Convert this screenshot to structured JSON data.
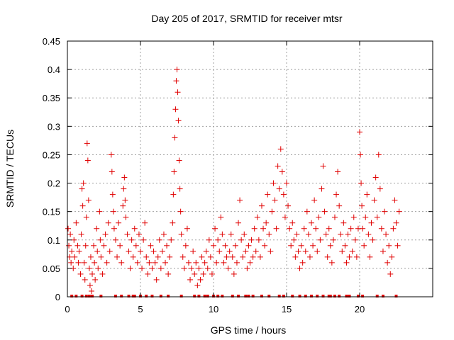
{
  "chart_data": {
    "type": "scatter",
    "title": "Day 205 of 2017, SRMTID for receiver mtsr",
    "xlabel": "GPS time / hours",
    "ylabel": "SRMTID / TECUs",
    "xlim": [
      0,
      25
    ],
    "ylim": [
      0,
      0.45
    ],
    "xticks": [
      0,
      5,
      10,
      15,
      20
    ],
    "xtick_labels": [
      "0",
      "5",
      "10",
      "15",
      "20"
    ],
    "yticks": [
      0,
      0.05,
      0.1,
      0.15,
      0.2,
      0.25,
      0.3,
      0.35,
      0.4,
      0.45
    ],
    "ytick_labels": [
      "0",
      "0.05",
      "0.1",
      "0.15",
      "0.2",
      "0.25",
      "0.3",
      "0.35",
      "0.4",
      "0.45"
    ],
    "grid": true,
    "marker": "+",
    "color": "#e00000",
    "series": [
      {
        "name": "SRMTID",
        "points": [
          [
            0.05,
            0.12
          ],
          [
            0.1,
            0.09
          ],
          [
            0.15,
            0.07
          ],
          [
            0.2,
            0.11
          ],
          [
            0.25,
            0.06
          ],
          [
            0.3,
            0.08
          ],
          [
            0.4,
            0.05
          ],
          [
            0.45,
            0.1
          ],
          [
            0.5,
            0.07
          ],
          [
            0.6,
            0.13
          ],
          [
            0.7,
            0.09
          ],
          [
            0.75,
            0.06
          ],
          [
            0.8,
            0.08
          ],
          [
            0.9,
            0.04
          ],
          [
            0.95,
            0.11
          ],
          [
            1.0,
            0.19
          ],
          [
            1.05,
            0.16
          ],
          [
            1.1,
            0.2
          ],
          [
            1.15,
            0.06
          ],
          [
            1.2,
            0.03
          ],
          [
            1.25,
            0.09
          ],
          [
            1.3,
            0.14
          ],
          [
            1.35,
            0.27
          ],
          [
            1.4,
            0.24
          ],
          [
            1.45,
            0.17
          ],
          [
            1.5,
            0.05
          ],
          [
            1.55,
            0.02
          ],
          [
            1.6,
            0.07
          ],
          [
            1.65,
            0.01
          ],
          [
            1.7,
            0.04
          ],
          [
            1.8,
            0.09
          ],
          [
            1.85,
            0.06
          ],
          [
            1.9,
            0.03
          ],
          [
            2.0,
            0.12
          ],
          [
            2.05,
            0.08
          ],
          [
            2.1,
            0.05
          ],
          [
            2.2,
            0.15
          ],
          [
            2.25,
            0.1
          ],
          [
            2.3,
            0.07
          ],
          [
            2.4,
            0.04
          ],
          [
            2.5,
            0.09
          ],
          [
            2.6,
            0.11
          ],
          [
            2.7,
            0.06
          ],
          [
            2.8,
            0.13
          ],
          [
            2.9,
            0.08
          ],
          [
            3.0,
            0.25
          ],
          [
            3.05,
            0.22
          ],
          [
            3.1,
            0.18
          ],
          [
            3.15,
            0.15
          ],
          [
            3.2,
            0.12
          ],
          [
            3.3,
            0.1
          ],
          [
            3.4,
            0.07
          ],
          [
            3.5,
            0.13
          ],
          [
            3.6,
            0.09
          ],
          [
            3.7,
            0.06
          ],
          [
            3.8,
            0.16
          ],
          [
            3.85,
            0.19
          ],
          [
            3.9,
            0.21
          ],
          [
            3.95,
            0.17
          ],
          [
            4.0,
            0.14
          ],
          [
            4.1,
            0.11
          ],
          [
            4.2,
            0.08
          ],
          [
            4.3,
            0.05
          ],
          [
            4.4,
            0.1
          ],
          [
            4.5,
            0.07
          ],
          [
            4.6,
            0.12
          ],
          [
            4.7,
            0.09
          ],
          [
            4.8,
            0.06
          ],
          [
            4.9,
            0.11
          ],
          [
            5.0,
            0.08
          ],
          [
            5.1,
            0.05
          ],
          [
            5.2,
            0.1
          ],
          [
            5.3,
            0.13
          ],
          [
            5.4,
            0.07
          ],
          [
            5.5,
            0.04
          ],
          [
            5.6,
            0.06
          ],
          [
            5.7,
            0.09
          ],
          [
            5.8,
            0.05
          ],
          [
            5.9,
            0.08
          ],
          [
            6.0,
            0.06
          ],
          [
            6.1,
            0.03
          ],
          [
            6.2,
            0.07
          ],
          [
            6.3,
            0.1
          ],
          [
            6.4,
            0.05
          ],
          [
            6.5,
            0.08
          ],
          [
            6.6,
            0.11
          ],
          [
            6.7,
            0.06
          ],
          [
            6.8,
            0.09
          ],
          [
            6.9,
            0.04
          ],
          [
            7.0,
            0.07
          ],
          [
            7.1,
            0.1
          ],
          [
            7.2,
            0.13
          ],
          [
            7.25,
            0.18
          ],
          [
            7.3,
            0.22
          ],
          [
            7.35,
            0.28
          ],
          [
            7.4,
            0.33
          ],
          [
            7.45,
            0.38
          ],
          [
            7.5,
            0.4
          ],
          [
            7.55,
            0.36
          ],
          [
            7.6,
            0.31
          ],
          [
            7.65,
            0.24
          ],
          [
            7.7,
            0.19
          ],
          [
            7.75,
            0.15
          ],
          [
            7.8,
            0.11
          ],
          [
            7.9,
            0.07
          ],
          [
            8.0,
            0.05
          ],
          [
            8.1,
            0.09
          ],
          [
            8.2,
            0.12
          ],
          [
            8.3,
            0.06
          ],
          [
            8.4,
            0.03
          ],
          [
            8.5,
            0.05
          ],
          [
            8.6,
            0.08
          ],
          [
            8.7,
            0.04
          ],
          [
            8.8,
            0.06
          ],
          [
            8.9,
            0.02
          ],
          [
            9.0,
            0.05
          ],
          [
            9.1,
            0.03
          ],
          [
            9.2,
            0.07
          ],
          [
            9.3,
            0.04
          ],
          [
            9.4,
            0.06
          ],
          [
            9.5,
            0.08
          ],
          [
            9.6,
            0.05
          ],
          [
            9.7,
            0.1
          ],
          [
            9.8,
            0.07
          ],
          [
            9.9,
            0.04
          ],
          [
            10.0,
            0.09
          ],
          [
            10.1,
            0.12
          ],
          [
            10.2,
            0.06
          ],
          [
            10.3,
            0.1
          ],
          [
            10.4,
            0.08
          ],
          [
            10.5,
            0.14
          ],
          [
            10.6,
            0.11
          ],
          [
            10.7,
            0.06
          ],
          [
            10.8,
            0.09
          ],
          [
            10.9,
            0.07
          ],
          [
            11.0,
            0.05
          ],
          [
            11.1,
            0.08
          ],
          [
            11.2,
            0.11
          ],
          [
            11.3,
            0.07
          ],
          [
            11.4,
            0.04
          ],
          [
            11.5,
            0.09
          ],
          [
            11.6,
            0.06
          ],
          [
            11.7,
            0.13
          ],
          [
            11.8,
            0.17
          ],
          [
            11.9,
            0.1
          ],
          [
            12.0,
            0.07
          ],
          [
            12.1,
            0.11
          ],
          [
            12.2,
            0.08
          ],
          [
            12.3,
            0.05
          ],
          [
            12.4,
            0.09
          ],
          [
            12.5,
            0.06
          ],
          [
            12.6,
            0.1
          ],
          [
            12.7,
            0.07
          ],
          [
            12.8,
            0.12
          ],
          [
            12.9,
            0.08
          ],
          [
            13.0,
            0.14
          ],
          [
            13.1,
            0.1
          ],
          [
            13.2,
            0.07
          ],
          [
            13.3,
            0.16
          ],
          [
            13.4,
            0.12
          ],
          [
            13.5,
            0.09
          ],
          [
            13.6,
            0.13
          ],
          [
            13.7,
            0.18
          ],
          [
            13.8,
            0.11
          ],
          [
            13.9,
            0.08
          ],
          [
            14.0,
            0.15
          ],
          [
            14.1,
            0.2
          ],
          [
            14.2,
            0.17
          ],
          [
            14.3,
            0.12
          ],
          [
            14.4,
            0.23
          ],
          [
            14.5,
            0.19
          ],
          [
            14.6,
            0.26
          ],
          [
            14.7,
            0.22
          ],
          [
            14.8,
            0.18
          ],
          [
            14.9,
            0.14
          ],
          [
            15.0,
            0.2
          ],
          [
            15.1,
            0.16
          ],
          [
            15.2,
            0.12
          ],
          [
            15.3,
            0.09
          ],
          [
            15.4,
            0.13
          ],
          [
            15.5,
            0.1
          ],
          [
            15.6,
            0.07
          ],
          [
            15.7,
            0.11
          ],
          [
            15.8,
            0.08
          ],
          [
            15.9,
            0.05
          ],
          [
            16.0,
            0.09
          ],
          [
            16.1,
            0.06
          ],
          [
            16.2,
            0.12
          ],
          [
            16.3,
            0.08
          ],
          [
            16.4,
            0.15
          ],
          [
            16.5,
            0.11
          ],
          [
            16.6,
            0.07
          ],
          [
            16.7,
            0.13
          ],
          [
            16.8,
            0.09
          ],
          [
            16.9,
            0.17
          ],
          [
            17.0,
            0.12
          ],
          [
            17.1,
            0.08
          ],
          [
            17.2,
            0.14
          ],
          [
            17.3,
            0.1
          ],
          [
            17.4,
            0.19
          ],
          [
            17.5,
            0.23
          ],
          [
            17.6,
            0.15
          ],
          [
            17.7,
            0.11
          ],
          [
            17.8,
            0.07
          ],
          [
            17.9,
            0.12
          ],
          [
            18.0,
            0.09
          ],
          [
            18.1,
            0.06
          ],
          [
            18.2,
            0.1
          ],
          [
            18.3,
            0.14
          ],
          [
            18.4,
            0.18
          ],
          [
            18.5,
            0.22
          ],
          [
            18.6,
            0.16
          ],
          [
            18.7,
            0.11
          ],
          [
            18.8,
            0.08
          ],
          [
            18.9,
            0.13
          ],
          [
            19.0,
            0.09
          ],
          [
            19.1,
            0.06
          ],
          [
            19.2,
            0.11
          ],
          [
            19.3,
            0.07
          ],
          [
            19.4,
            0.12
          ],
          [
            19.5,
            0.08
          ],
          [
            19.6,
            0.14
          ],
          [
            19.7,
            0.1
          ],
          [
            19.8,
            0.07
          ],
          [
            19.9,
            0.12
          ],
          [
            20.0,
            0.29
          ],
          [
            20.05,
            0.25
          ],
          [
            20.1,
            0.2
          ],
          [
            20.15,
            0.16
          ],
          [
            20.2,
            0.12
          ],
          [
            20.3,
            0.09
          ],
          [
            20.4,
            0.14
          ],
          [
            20.5,
            0.18
          ],
          [
            20.6,
            0.11
          ],
          [
            20.7,
            0.07
          ],
          [
            20.8,
            0.13
          ],
          [
            20.9,
            0.1
          ],
          [
            21.0,
            0.17
          ],
          [
            21.1,
            0.21
          ],
          [
            21.2,
            0.14
          ],
          [
            21.3,
            0.25
          ],
          [
            21.4,
            0.19
          ],
          [
            21.5,
            0.12
          ],
          [
            21.6,
            0.08
          ],
          [
            21.7,
            0.15
          ],
          [
            21.8,
            0.11
          ],
          [
            21.9,
            0.06
          ],
          [
            22.0,
            0.09
          ],
          [
            22.1,
            0.04
          ],
          [
            22.2,
            0.07
          ],
          [
            22.3,
            0.12
          ],
          [
            22.4,
            0.17
          ],
          [
            22.5,
            0.13
          ],
          [
            22.6,
            0.09
          ],
          [
            22.7,
            0.15
          ]
        ],
        "zero_points": [
          0.3,
          0.6,
          1.0,
          1.3,
          1.5,
          1.7,
          2.3,
          3.3,
          3.7,
          4.2,
          4.5,
          4.6,
          5.0,
          5.4,
          5.8,
          6.4,
          6.9,
          7.8,
          8.7,
          9.0,
          9.4,
          9.6,
          10.0,
          10.3,
          10.6,
          11.3,
          11.7,
          12.2,
          12.4,
          12.7,
          13.3,
          13.8,
          14.5,
          14.8,
          15.4,
          15.9,
          16.3,
          16.7,
          17.1,
          17.5,
          17.9,
          18.0,
          18.3,
          18.6,
          19.1,
          19.3,
          19.9,
          20.2,
          21.2,
          21.6,
          22.5
        ]
      }
    ]
  }
}
